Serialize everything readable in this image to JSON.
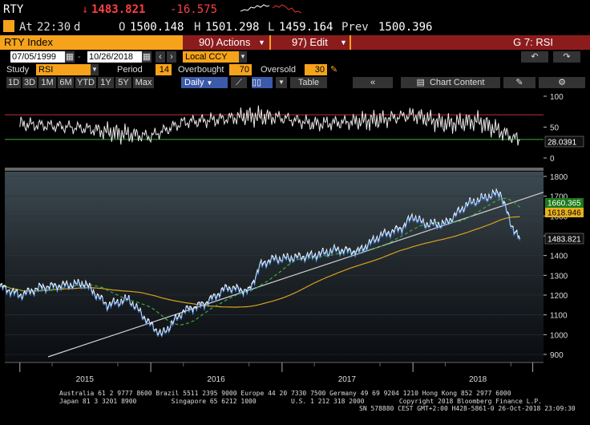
{
  "ticker": {
    "symbol": "RTY",
    "arrow": "↓",
    "last_price": "1483.821",
    "change": "-16.575",
    "at_label": "At",
    "time": "22:30",
    "time_flag": "d",
    "open_label": "O",
    "open": "1500.148",
    "high_label": "H",
    "high": "1501.298",
    "low_label": "L",
    "low": "1459.164",
    "prev_label": "Prev",
    "prev": "1500.396"
  },
  "title_bar": {
    "security": "RTY Index",
    "actions_label": "90) Actions",
    "edit_label": "97) Edit",
    "function": "G 7: RSI"
  },
  "range": {
    "start_date": "07/05/1999",
    "end_date": "10/26/2018",
    "currency": "Local CCY"
  },
  "study": {
    "study_label": "Study",
    "study_value": "RSI",
    "period_label": "Period",
    "period_value": "14",
    "overbought_label": "Overbought",
    "overbought_value": "70",
    "oversold_label": "Oversold",
    "oversold_value": "30"
  },
  "periods": [
    "1D",
    "3D",
    "1M",
    "6M",
    "YTD",
    "1Y",
    "5Y",
    "Max"
  ],
  "frequency": "Daily",
  "table_label": "Table",
  "chart_content_label": "Chart Content",
  "footer": {
    "line1": "Australia 61 2 9777 8600 Brazil 5511 2395 9000 Europe 44 20 7330 7500 Germany 49 69 9204 1210 Hong Kong 852 2977 6000",
    "line2": "Japan 81 3 3201 8900         Singapore 65 6212 1000         U.S. 1 212 318 2000         Copyright 2018 Bloomberg Finance L.P.",
    "line3": "SN 578880 CEST GMT+2:00 H428-5861-0 26-Oct-2018 23:09:30"
  },
  "colors": {
    "orange": "#f6a31b",
    "red_bar": "#8c1c1c",
    "price_line": "#ffffff",
    "ma_short": "#3caa3c",
    "ma_long": "#d8a020",
    "trend": "#cccccc",
    "rsi_overbought": "#c03030",
    "rsi_oversold": "#3caa3c"
  },
  "chart_data": [
    {
      "type": "line",
      "name": "RSI panel",
      "y_ticks": [
        100,
        50,
        0
      ],
      "ylim": [
        0,
        100
      ],
      "overbought": 70,
      "oversold": 30,
      "last_value_label": "28.0391",
      "x": [
        "2015-01",
        "2015-04",
        "2015-07",
        "2015-10",
        "2016-01",
        "2016-04",
        "2016-07",
        "2016-10",
        "2017-01",
        "2017-04",
        "2017-07",
        "2017-10",
        "2018-01",
        "2018-04",
        "2018-07",
        "2018-10",
        "2018-10-26"
      ],
      "values": [
        55,
        52,
        48,
        40,
        35,
        58,
        62,
        68,
        65,
        55,
        58,
        62,
        70,
        55,
        60,
        35,
        28
      ]
    },
    {
      "type": "line",
      "name": "Price panel",
      "y_ticks": [
        1800,
        1700,
        1600,
        1500,
        1400,
        1300,
        1200,
        1100,
        1000,
        900
      ],
      "ylim": [
        880,
        1830
      ],
      "x_labels": [
        "2015",
        "2016",
        "2017",
        "2018"
      ],
      "last_price_label": "1483.821",
      "ma_short_label": "1660.365",
      "ma_long_label": "1618.946",
      "x": [
        "2014-11",
        "2015-01",
        "2015-03",
        "2015-05",
        "2015-07",
        "2015-09",
        "2015-11",
        "2016-01",
        "2016-02",
        "2016-04",
        "2016-06",
        "2016-08",
        "2016-10",
        "2016-11",
        "2016-12",
        "2017-02",
        "2017-04",
        "2017-06",
        "2017-08",
        "2017-10",
        "2017-12",
        "2018-01",
        "2018-02",
        "2018-04",
        "2018-06",
        "2018-08",
        "2018-09",
        "2018-10",
        "2018-10-26"
      ],
      "values": [
        1250,
        1200,
        1240,
        1250,
        1260,
        1150,
        1180,
        1050,
        1000,
        1120,
        1160,
        1240,
        1220,
        1350,
        1380,
        1390,
        1400,
        1430,
        1420,
        1500,
        1540,
        1600,
        1560,
        1560,
        1660,
        1700,
        1720,
        1560,
        1483
      ]
    }
  ]
}
